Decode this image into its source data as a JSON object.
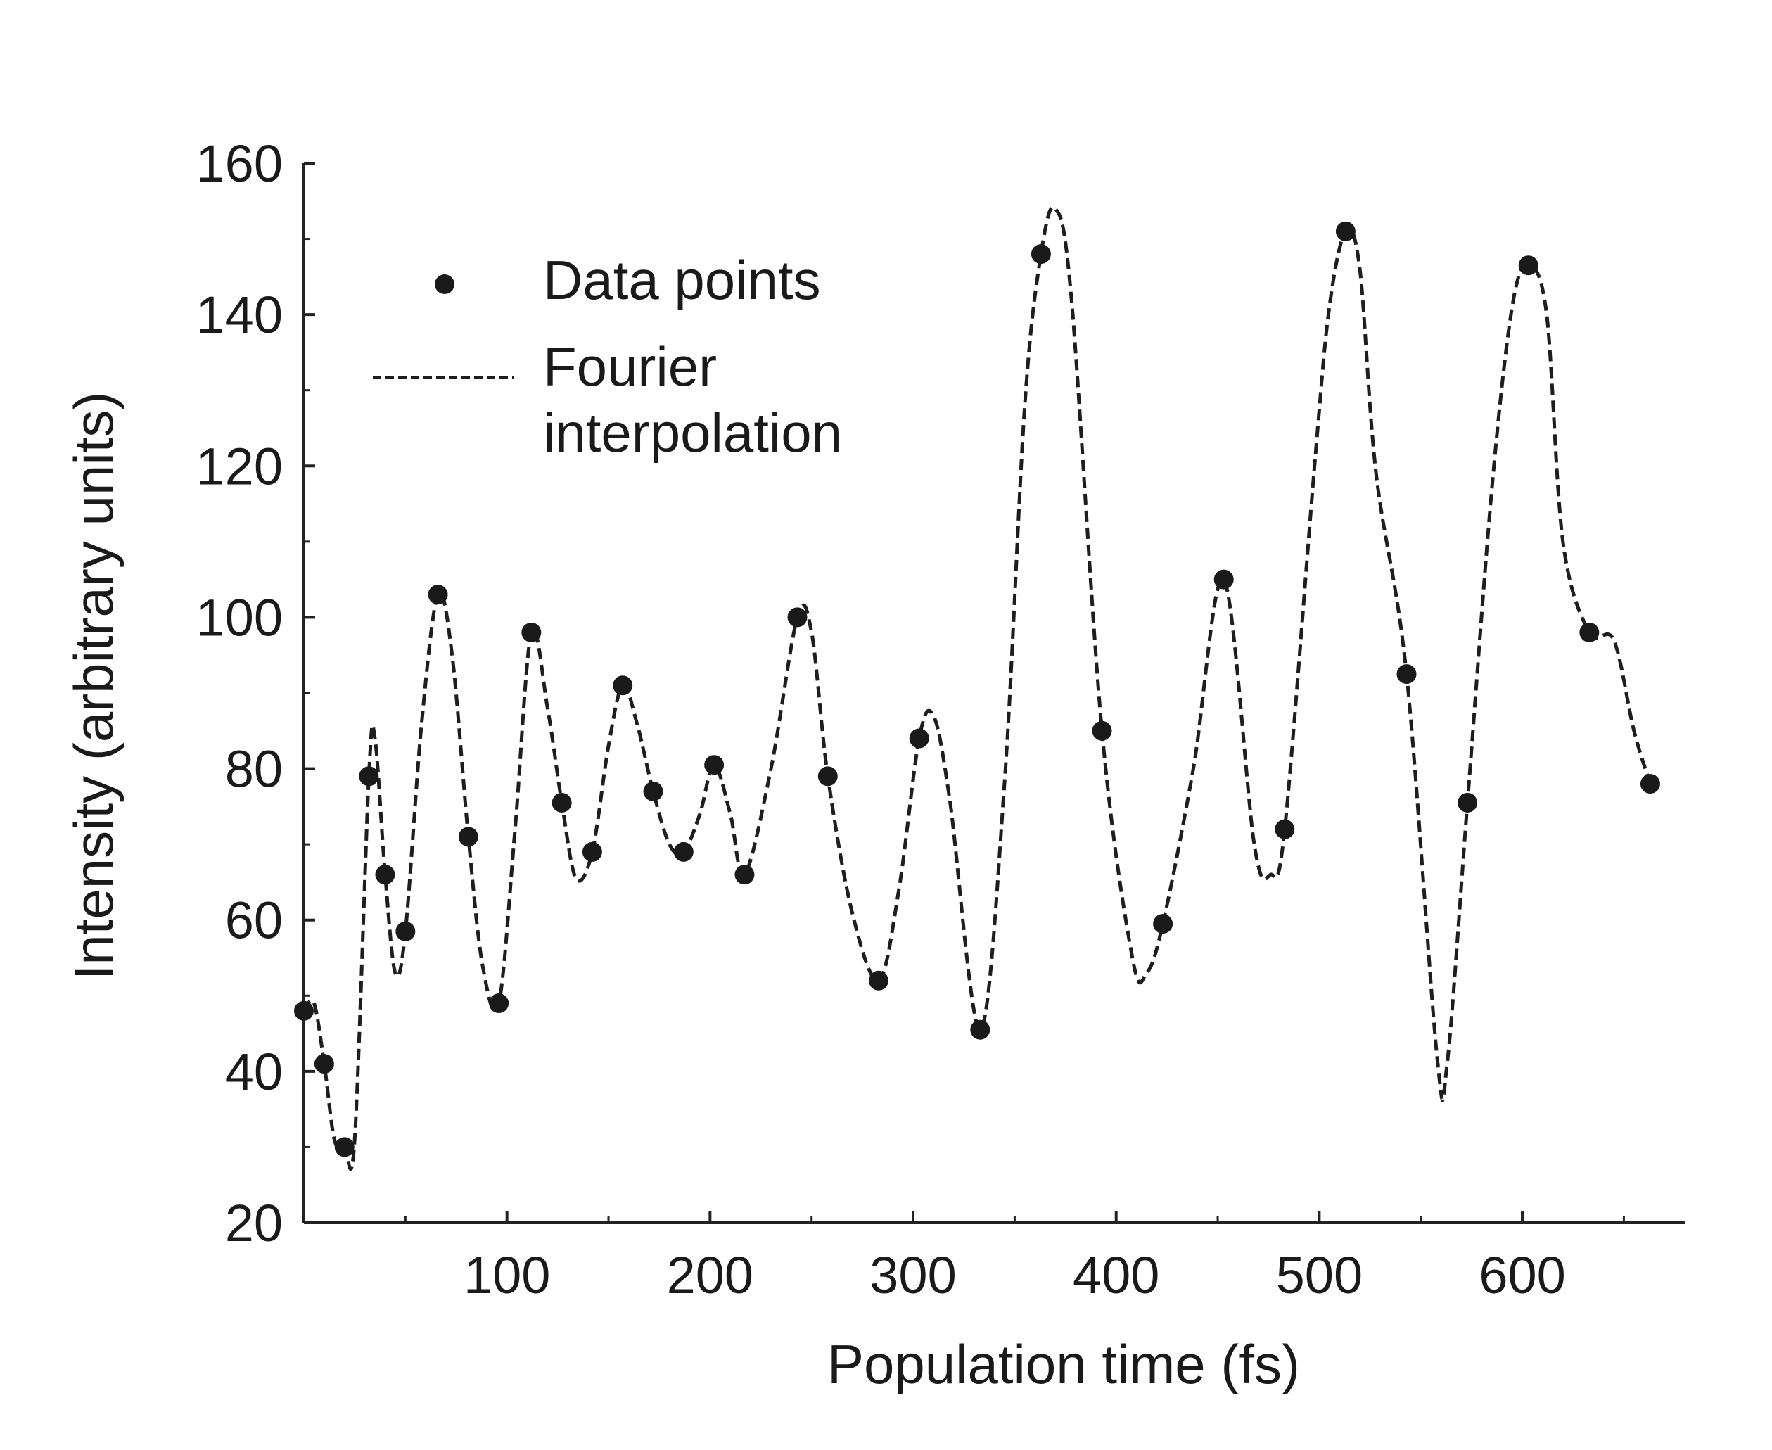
{
  "chart_data": {
    "type": "line",
    "title": "",
    "xlabel": "Population time (fs)",
    "ylabel": "Intensity (arbitrary units)",
    "xlim": [
      0,
      680
    ],
    "ylim": [
      20,
      160
    ],
    "xticks": [
      100,
      200,
      300,
      400,
      500,
      600
    ],
    "xtick_labels": [
      "100",
      "200",
      "300",
      "400",
      "500",
      "600"
    ],
    "yticks": [
      20,
      40,
      60,
      80,
      100,
      120,
      140,
      160
    ],
    "ytick_labels": [
      "20",
      "40",
      "60",
      "80",
      "100",
      "120",
      "140",
      "160"
    ],
    "grid": false,
    "legend_position": "top-left",
    "legend": {
      "data_points_label": "Data points",
      "fourier_label_line1": "Fourier",
      "fourier_label_line2": "interpolation"
    },
    "series": [
      {
        "name": "Data points",
        "style": "markers",
        "x": [
          0,
          10,
          20,
          32,
          40,
          50,
          66,
          81,
          96,
          112,
          127,
          142,
          157,
          172,
          187,
          202,
          217,
          243,
          258,
          283,
          303,
          333,
          363,
          393,
          423,
          453,
          483,
          513,
          543,
          573,
          603,
          633,
          663
        ],
        "y": [
          48,
          41,
          30,
          79,
          66,
          58.5,
          103,
          71,
          49,
          98,
          75.5,
          69,
          91,
          77,
          69,
          80.5,
          66,
          100,
          79,
          52,
          84,
          45.5,
          148,
          85,
          59.5,
          105,
          72,
          151,
          92.5,
          75.5,
          146.5,
          98,
          78
        ]
      },
      {
        "name": "Fourier interpolation",
        "style": "dashed",
        "x": [
          0,
          5,
          10,
          15,
          20,
          25,
          32,
          35,
          40,
          45,
          50,
          58,
          66,
          73,
          81,
          88,
          96,
          104,
          112,
          120,
          127,
          134,
          142,
          150,
          157,
          164,
          172,
          180,
          187,
          195,
          202,
          210,
          217,
          230,
          243,
          250,
          258,
          270,
          283,
          293,
          303,
          310,
          318,
          333,
          345,
          355,
          363,
          370,
          378,
          393,
          408,
          415,
          423,
          438,
          453,
          468,
          476,
          483,
          498,
          505,
          513,
          520,
          528,
          543,
          558,
          563,
          573,
          585,
          595,
          603,
          612,
          620,
          633,
          645,
          655,
          663
        ],
        "y": [
          48,
          49,
          41,
          31,
          30,
          31,
          79,
          84,
          66,
          53,
          58.5,
          86,
          103,
          95,
          71,
          54,
          49,
          72,
          98,
          88,
          75.5,
          65.5,
          69,
          83,
          91,
          86,
          77,
          70,
          69,
          74,
          80.5,
          74,
          66,
          80,
          100,
          98,
          79,
          61,
          52,
          64,
          84,
          87,
          76,
          45.5,
          78,
          128,
          148,
          154,
          142,
          85,
          55,
          53,
          59.5,
          80,
          105,
          70,
          66,
          72,
          121,
          141,
          151,
          146,
          119,
          92.5,
          42,
          41,
          75.5,
          117,
          141,
          146.5,
          140,
          110,
          98,
          97,
          85,
          78
        ]
      }
    ]
  }
}
